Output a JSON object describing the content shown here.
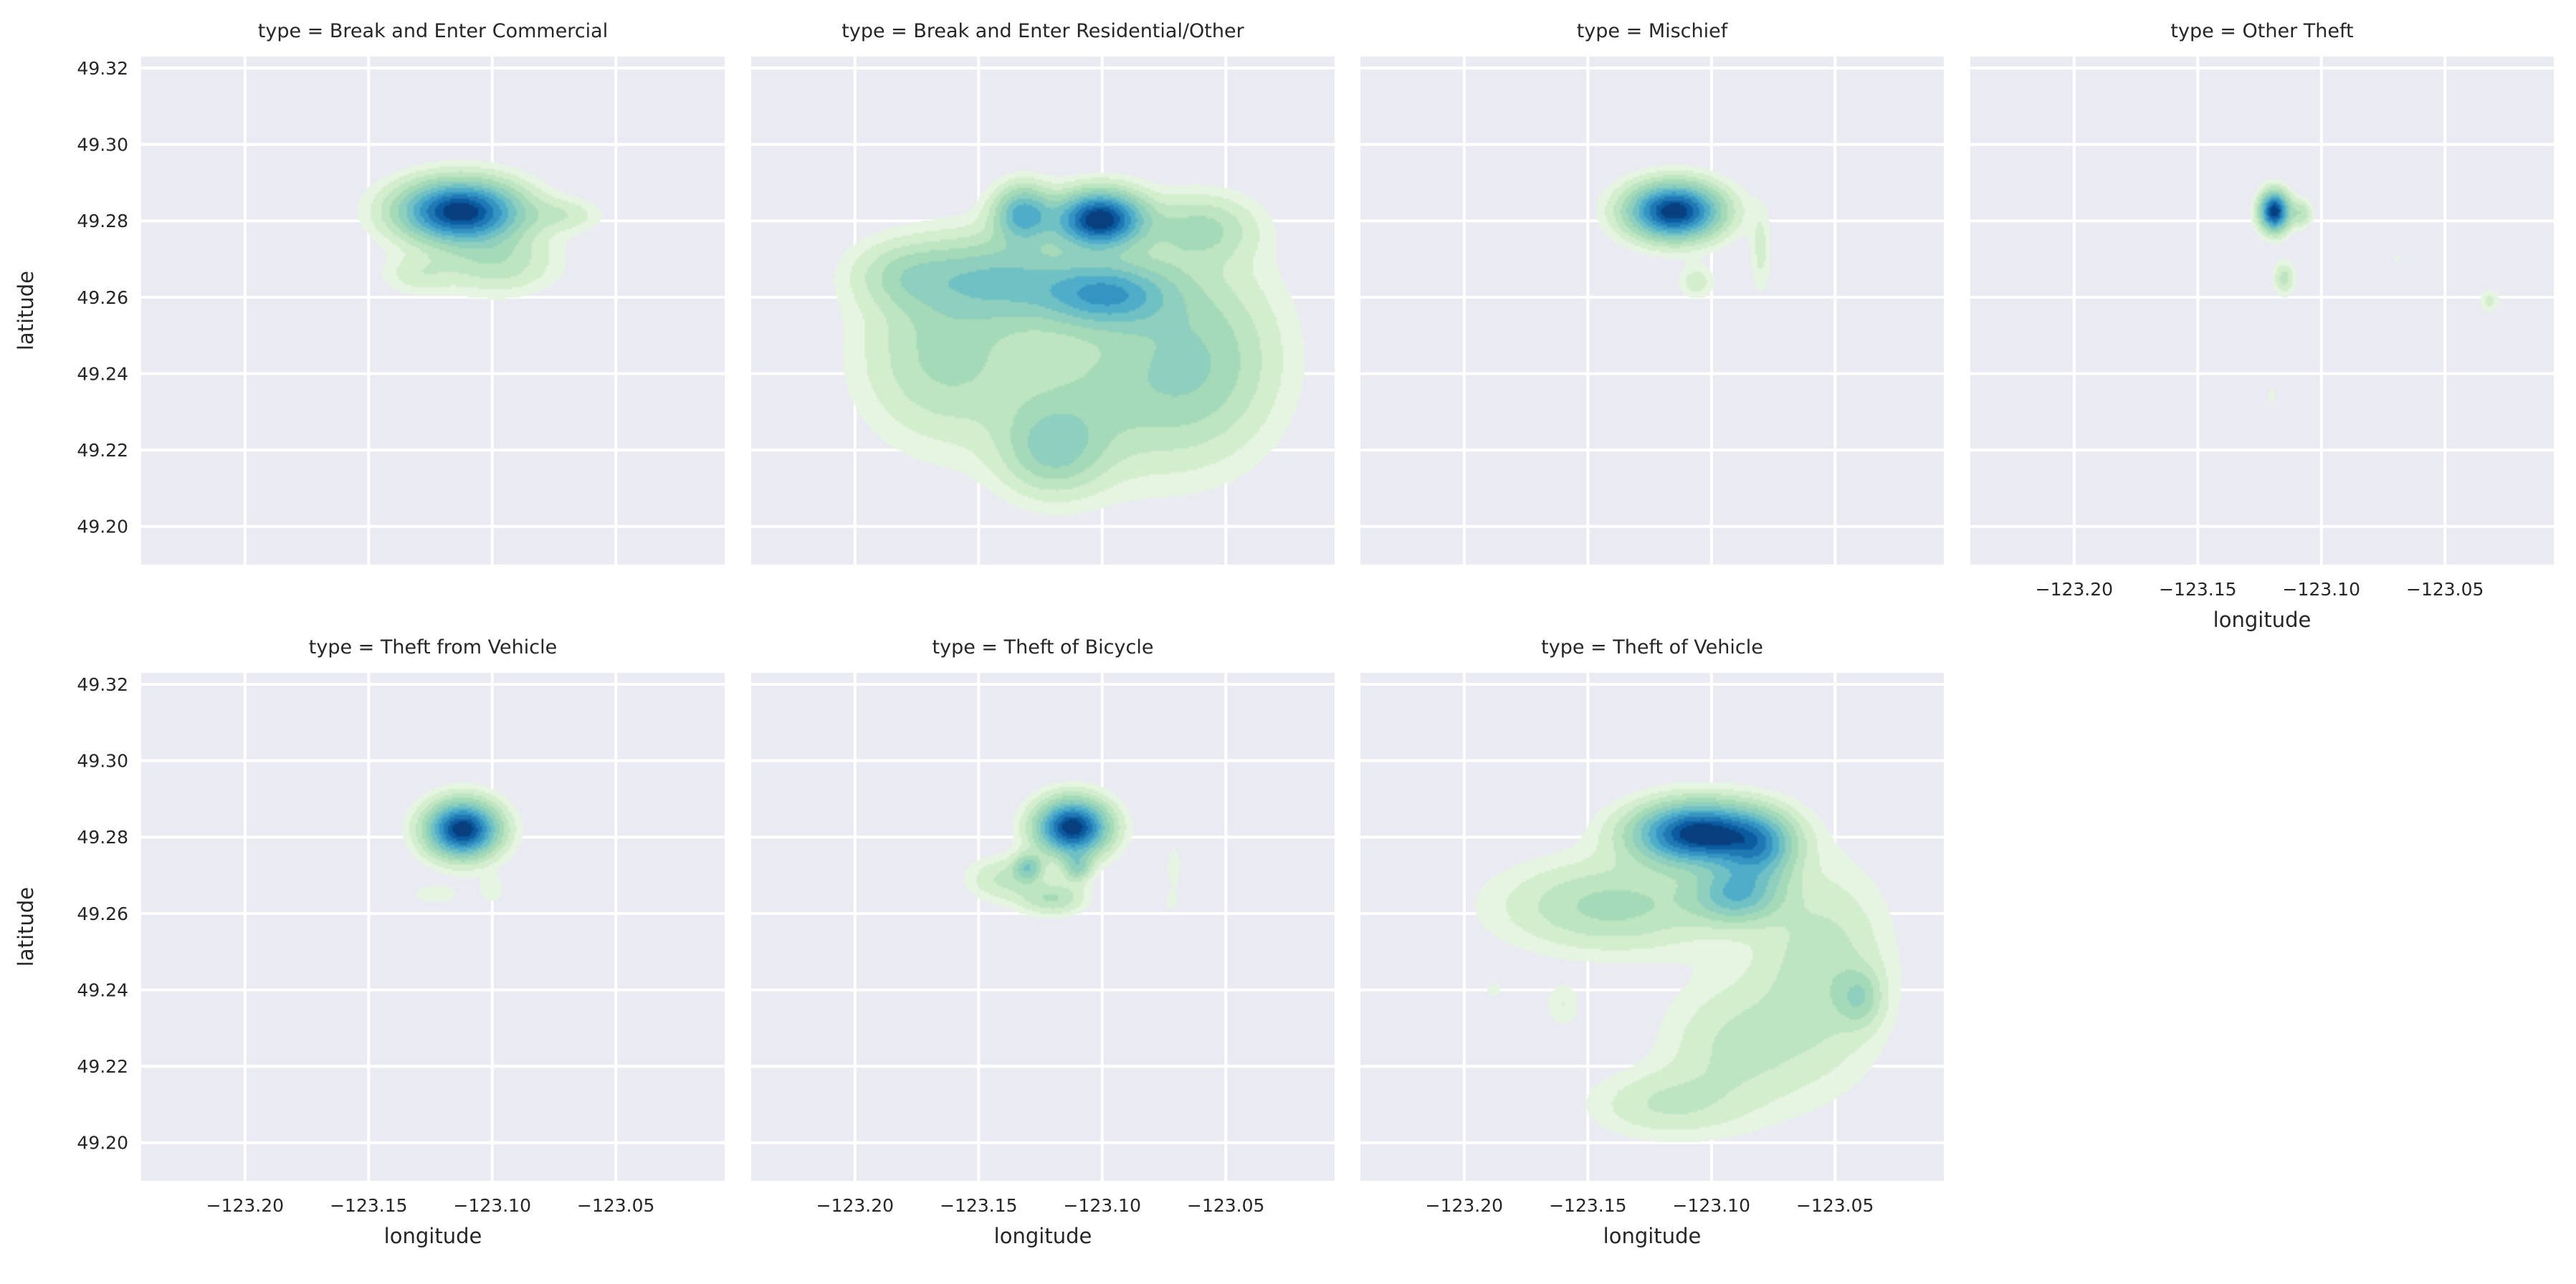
{
  "chart_data": {
    "type": "kde-facet-grid",
    "colors": {
      "panel_bg": "#eaeaf2",
      "grid": "#ffffff",
      "text": "#262626",
      "levels": [
        "#e6f5e1",
        "#d3eecd",
        "#bde5c1",
        "#a4dab8",
        "#8ecfbd",
        "#6fc1c3",
        "#4fadc9",
        "#3594c2",
        "#1f78b4",
        "#0b5ba0",
        "#08407f"
      ]
    },
    "x_axis": {
      "label": "longitude",
      "ticks": [
        -123.2,
        -123.15,
        -123.1,
        -123.05
      ],
      "tick_labels": [
        "−123.20",
        "−123.15",
        "−123.10",
        "−123.05"
      ],
      "range": [
        -123.242,
        -123.006
      ]
    },
    "y_axis": {
      "label": "latitude",
      "ticks": [
        49.2,
        49.22,
        49.24,
        49.26,
        49.28,
        49.3,
        49.32
      ],
      "tick_labels": [
        "49.20",
        "49.22",
        "49.24",
        "49.26",
        "49.28",
        "49.30",
        "49.32"
      ],
      "range": [
        49.19,
        49.323
      ]
    },
    "panels": [
      {
        "title": "type = Break and Enter Commercial",
        "blobs": [
          {
            "lon": -123.113,
            "lat": 49.2825,
            "sx": 0.017,
            "sy": 0.0055,
            "w": 1.0
          },
          {
            "lon": -123.098,
            "lat": 49.269,
            "sx": 0.016,
            "sy": 0.0055,
            "w": 0.22
          },
          {
            "lon": -123.07,
            "lat": 49.2815,
            "sx": 0.01,
            "sy": 0.003,
            "w": 0.13
          },
          {
            "lon": -123.13,
            "lat": 49.266,
            "sx": 0.01,
            "sy": 0.0035,
            "w": 0.13
          }
        ]
      },
      {
        "title": "type = Break and Enter Residential/Other",
        "blobs": [
          {
            "lon": -123.101,
            "lat": 49.2805,
            "sx": 0.012,
            "sy": 0.005,
            "w": 1.0
          },
          {
            "lon": -123.132,
            "lat": 49.282,
            "sx": 0.008,
            "sy": 0.005,
            "w": 0.55
          },
          {
            "lon": -123.098,
            "lat": 49.261,
            "sx": 0.018,
            "sy": 0.006,
            "w": 0.55
          },
          {
            "lon": -123.14,
            "lat": 49.265,
            "sx": 0.022,
            "sy": 0.008,
            "w": 0.38
          },
          {
            "lon": -123.12,
            "lat": 49.22,
            "sx": 0.014,
            "sy": 0.008,
            "w": 0.3
          },
          {
            "lon": -123.165,
            "lat": 49.245,
            "sx": 0.022,
            "sy": 0.015,
            "w": 0.26
          },
          {
            "lon": -123.06,
            "lat": 49.245,
            "sx": 0.022,
            "sy": 0.017,
            "w": 0.28
          },
          {
            "lon": -123.1,
            "lat": 49.235,
            "sx": 0.03,
            "sy": 0.015,
            "w": 0.22
          },
          {
            "lon": -123.06,
            "lat": 49.278,
            "sx": 0.015,
            "sy": 0.006,
            "w": 0.25
          },
          {
            "lon": -123.18,
            "lat": 49.266,
            "sx": 0.015,
            "sy": 0.006,
            "w": 0.2
          }
        ]
      },
      {
        "title": "type = Mischief",
        "blobs": [
          {
            "lon": -123.115,
            "lat": 49.2825,
            "sx": 0.013,
            "sy": 0.005,
            "w": 1.0
          },
          {
            "lon": -123.106,
            "lat": 49.264,
            "sx": 0.005,
            "sy": 0.003,
            "w": 0.14
          },
          {
            "lon": -123.08,
            "lat": 49.272,
            "sx": 0.003,
            "sy": 0.008,
            "w": 0.12
          }
        ]
      },
      {
        "title": "type = Other Theft",
        "blobs": [
          {
            "lon": -123.119,
            "lat": 49.2825,
            "sx": 0.004,
            "sy": 0.0035,
            "w": 1.0
          },
          {
            "lon": -123.108,
            "lat": 49.282,
            "sx": 0.003,
            "sy": 0.0025,
            "w": 0.22
          },
          {
            "lon": -123.115,
            "lat": 49.265,
            "sx": 0.003,
            "sy": 0.003,
            "w": 0.2
          },
          {
            "lon": -123.032,
            "lat": 49.259,
            "sx": 0.003,
            "sy": 0.0022,
            "w": 0.12
          },
          {
            "lon": -123.12,
            "lat": 49.234,
            "sx": 0.002,
            "sy": 0.002,
            "w": 0.07
          },
          {
            "lon": -123.069,
            "lat": 49.27,
            "sx": 0.0015,
            "sy": 0.002,
            "w": 0.06
          }
        ]
      },
      {
        "title": "type = Theft from Vehicle",
        "blobs": [
          {
            "lon": -123.112,
            "lat": 49.282,
            "sx": 0.01,
            "sy": 0.005,
            "w": 1.0
          },
          {
            "lon": -123.123,
            "lat": 49.265,
            "sx": 0.008,
            "sy": 0.002,
            "w": 0.08
          },
          {
            "lon": -123.1,
            "lat": 49.266,
            "sx": 0.004,
            "sy": 0.003,
            "w": 0.08
          }
        ]
      },
      {
        "title": "type = Theft of Bicycle",
        "blobs": [
          {
            "lon": -123.112,
            "lat": 49.2825,
            "sx": 0.01,
            "sy": 0.005,
            "w": 1.0
          },
          {
            "lon": -123.13,
            "lat": 49.272,
            "sx": 0.004,
            "sy": 0.0025,
            "w": 0.35
          },
          {
            "lon": -123.11,
            "lat": 49.272,
            "sx": 0.004,
            "sy": 0.0025,
            "w": 0.3
          },
          {
            "lon": -123.12,
            "lat": 49.264,
            "sx": 0.009,
            "sy": 0.003,
            "w": 0.25
          },
          {
            "lon": -123.14,
            "lat": 49.269,
            "sx": 0.01,
            "sy": 0.004,
            "w": 0.18
          },
          {
            "lon": -123.071,
            "lat": 49.272,
            "sx": 0.002,
            "sy": 0.004,
            "w": 0.1
          },
          {
            "lon": -123.072,
            "lat": 49.263,
            "sx": 0.002,
            "sy": 0.002,
            "w": 0.08
          }
        ]
      },
      {
        "title": "type = Theft of Vehicle",
        "blobs": [
          {
            "lon": -123.105,
            "lat": 49.281,
            "sx": 0.018,
            "sy": 0.0055,
            "w": 1.0
          },
          {
            "lon": -123.08,
            "lat": 49.277,
            "sx": 0.01,
            "sy": 0.006,
            "w": 0.45
          },
          {
            "lon": -123.09,
            "lat": 49.265,
            "sx": 0.012,
            "sy": 0.005,
            "w": 0.45
          },
          {
            "lon": -123.14,
            "lat": 49.262,
            "sx": 0.03,
            "sy": 0.008,
            "w": 0.28
          },
          {
            "lon": -123.055,
            "lat": 49.245,
            "sx": 0.018,
            "sy": 0.018,
            "w": 0.22
          },
          {
            "lon": -123.09,
            "lat": 49.225,
            "sx": 0.02,
            "sy": 0.012,
            "w": 0.18
          },
          {
            "lon": -123.12,
            "lat": 49.21,
            "sx": 0.02,
            "sy": 0.006,
            "w": 0.16
          },
          {
            "lon": -123.16,
            "lat": 49.236,
            "sx": 0.005,
            "sy": 0.004,
            "w": 0.1
          },
          {
            "lon": -123.188,
            "lat": 49.24,
            "sx": 0.003,
            "sy": 0.002,
            "w": 0.07
          },
          {
            "lon": -123.04,
            "lat": 49.238,
            "sx": 0.006,
            "sy": 0.005,
            "w": 0.22
          }
        ]
      }
    ]
  }
}
